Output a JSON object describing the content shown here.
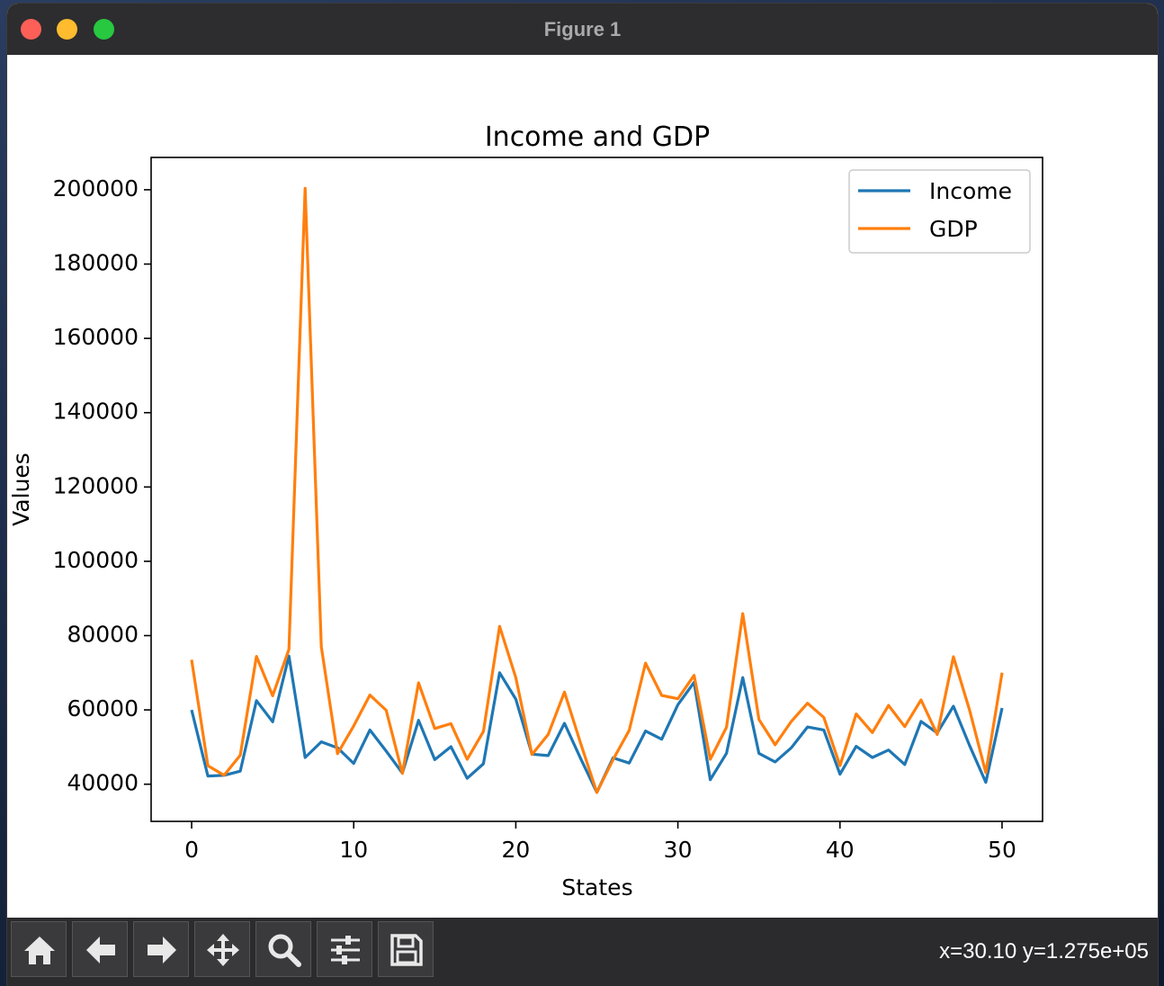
{
  "window": {
    "title": "Figure 1"
  },
  "toolbar": {
    "buttons": [
      {
        "name": "home-button",
        "icon": "home-icon"
      },
      {
        "name": "back-button",
        "icon": "arrow-left-icon"
      },
      {
        "name": "forward-button",
        "icon": "arrow-right-icon"
      },
      {
        "name": "pan-button",
        "icon": "move-icon"
      },
      {
        "name": "zoom-button",
        "icon": "magnifier-icon"
      },
      {
        "name": "configure-subplots-button",
        "icon": "sliders-icon"
      },
      {
        "name": "save-button",
        "icon": "floppy-disk-icon"
      }
    ],
    "coords": "x=30.10 y=1.275e+05"
  },
  "chart_data": {
    "type": "line",
    "title": "Income and GDP",
    "xlabel": "States",
    "ylabel": "Values",
    "xlim": [
      -2.5,
      52.5
    ],
    "ylim": [
      30000,
      208700
    ],
    "xticks": [
      0,
      10,
      20,
      30,
      40,
      50
    ],
    "yticks": [
      40000,
      60000,
      80000,
      100000,
      120000,
      140000,
      160000,
      180000,
      200000
    ],
    "grid": false,
    "legend": "upper right",
    "x": [
      0,
      1,
      2,
      3,
      4,
      5,
      6,
      7,
      8,
      9,
      10,
      11,
      12,
      13,
      14,
      15,
      16,
      17,
      18,
      19,
      20,
      21,
      22,
      23,
      24,
      25,
      26,
      27,
      28,
      29,
      30,
      31,
      32,
      33,
      34,
      35,
      36,
      37,
      38,
      39,
      40,
      41,
      42,
      43,
      44,
      45,
      46,
      47,
      48,
      49,
      50
    ],
    "series": [
      {
        "name": "Income",
        "color": "#1f77b4",
        "values": [
          60000,
          42200,
          42400,
          43500,
          62500,
          56800,
          74500,
          47200,
          51400,
          49800,
          45600,
          54600,
          48900,
          43000,
          57200,
          46600,
          50100,
          41600,
          45500,
          70000,
          62900,
          48100,
          47700,
          56400,
          46900,
          37800,
          47100,
          45700,
          54300,
          52100,
          61400,
          67400,
          41200,
          48300,
          68700,
          48300,
          46000,
          49800,
          55400,
          54600,
          42700,
          50200,
          47200,
          49200,
          45300,
          56900,
          53800,
          61000,
          50400,
          40500,
          60500
        ]
      },
      {
        "name": "GDP",
        "color": "#ff7f0e",
        "values": [
          73500,
          45000,
          42400,
          47800,
          74400,
          63800,
          76300,
          200400,
          77000,
          48200,
          55700,
          64000,
          59900,
          42900,
          67300,
          55000,
          56300,
          46700,
          54200,
          82500,
          68700,
          48000,
          53400,
          64800,
          51000,
          37800,
          46600,
          54500,
          72600,
          63900,
          63000,
          69300,
          46700,
          55300,
          85900,
          57400,
          50600,
          56900,
          61800,
          58000,
          45000,
          58900,
          53900,
          61200,
          55500,
          62700,
          53400,
          74300,
          59900,
          43100,
          70000
        ]
      }
    ]
  }
}
